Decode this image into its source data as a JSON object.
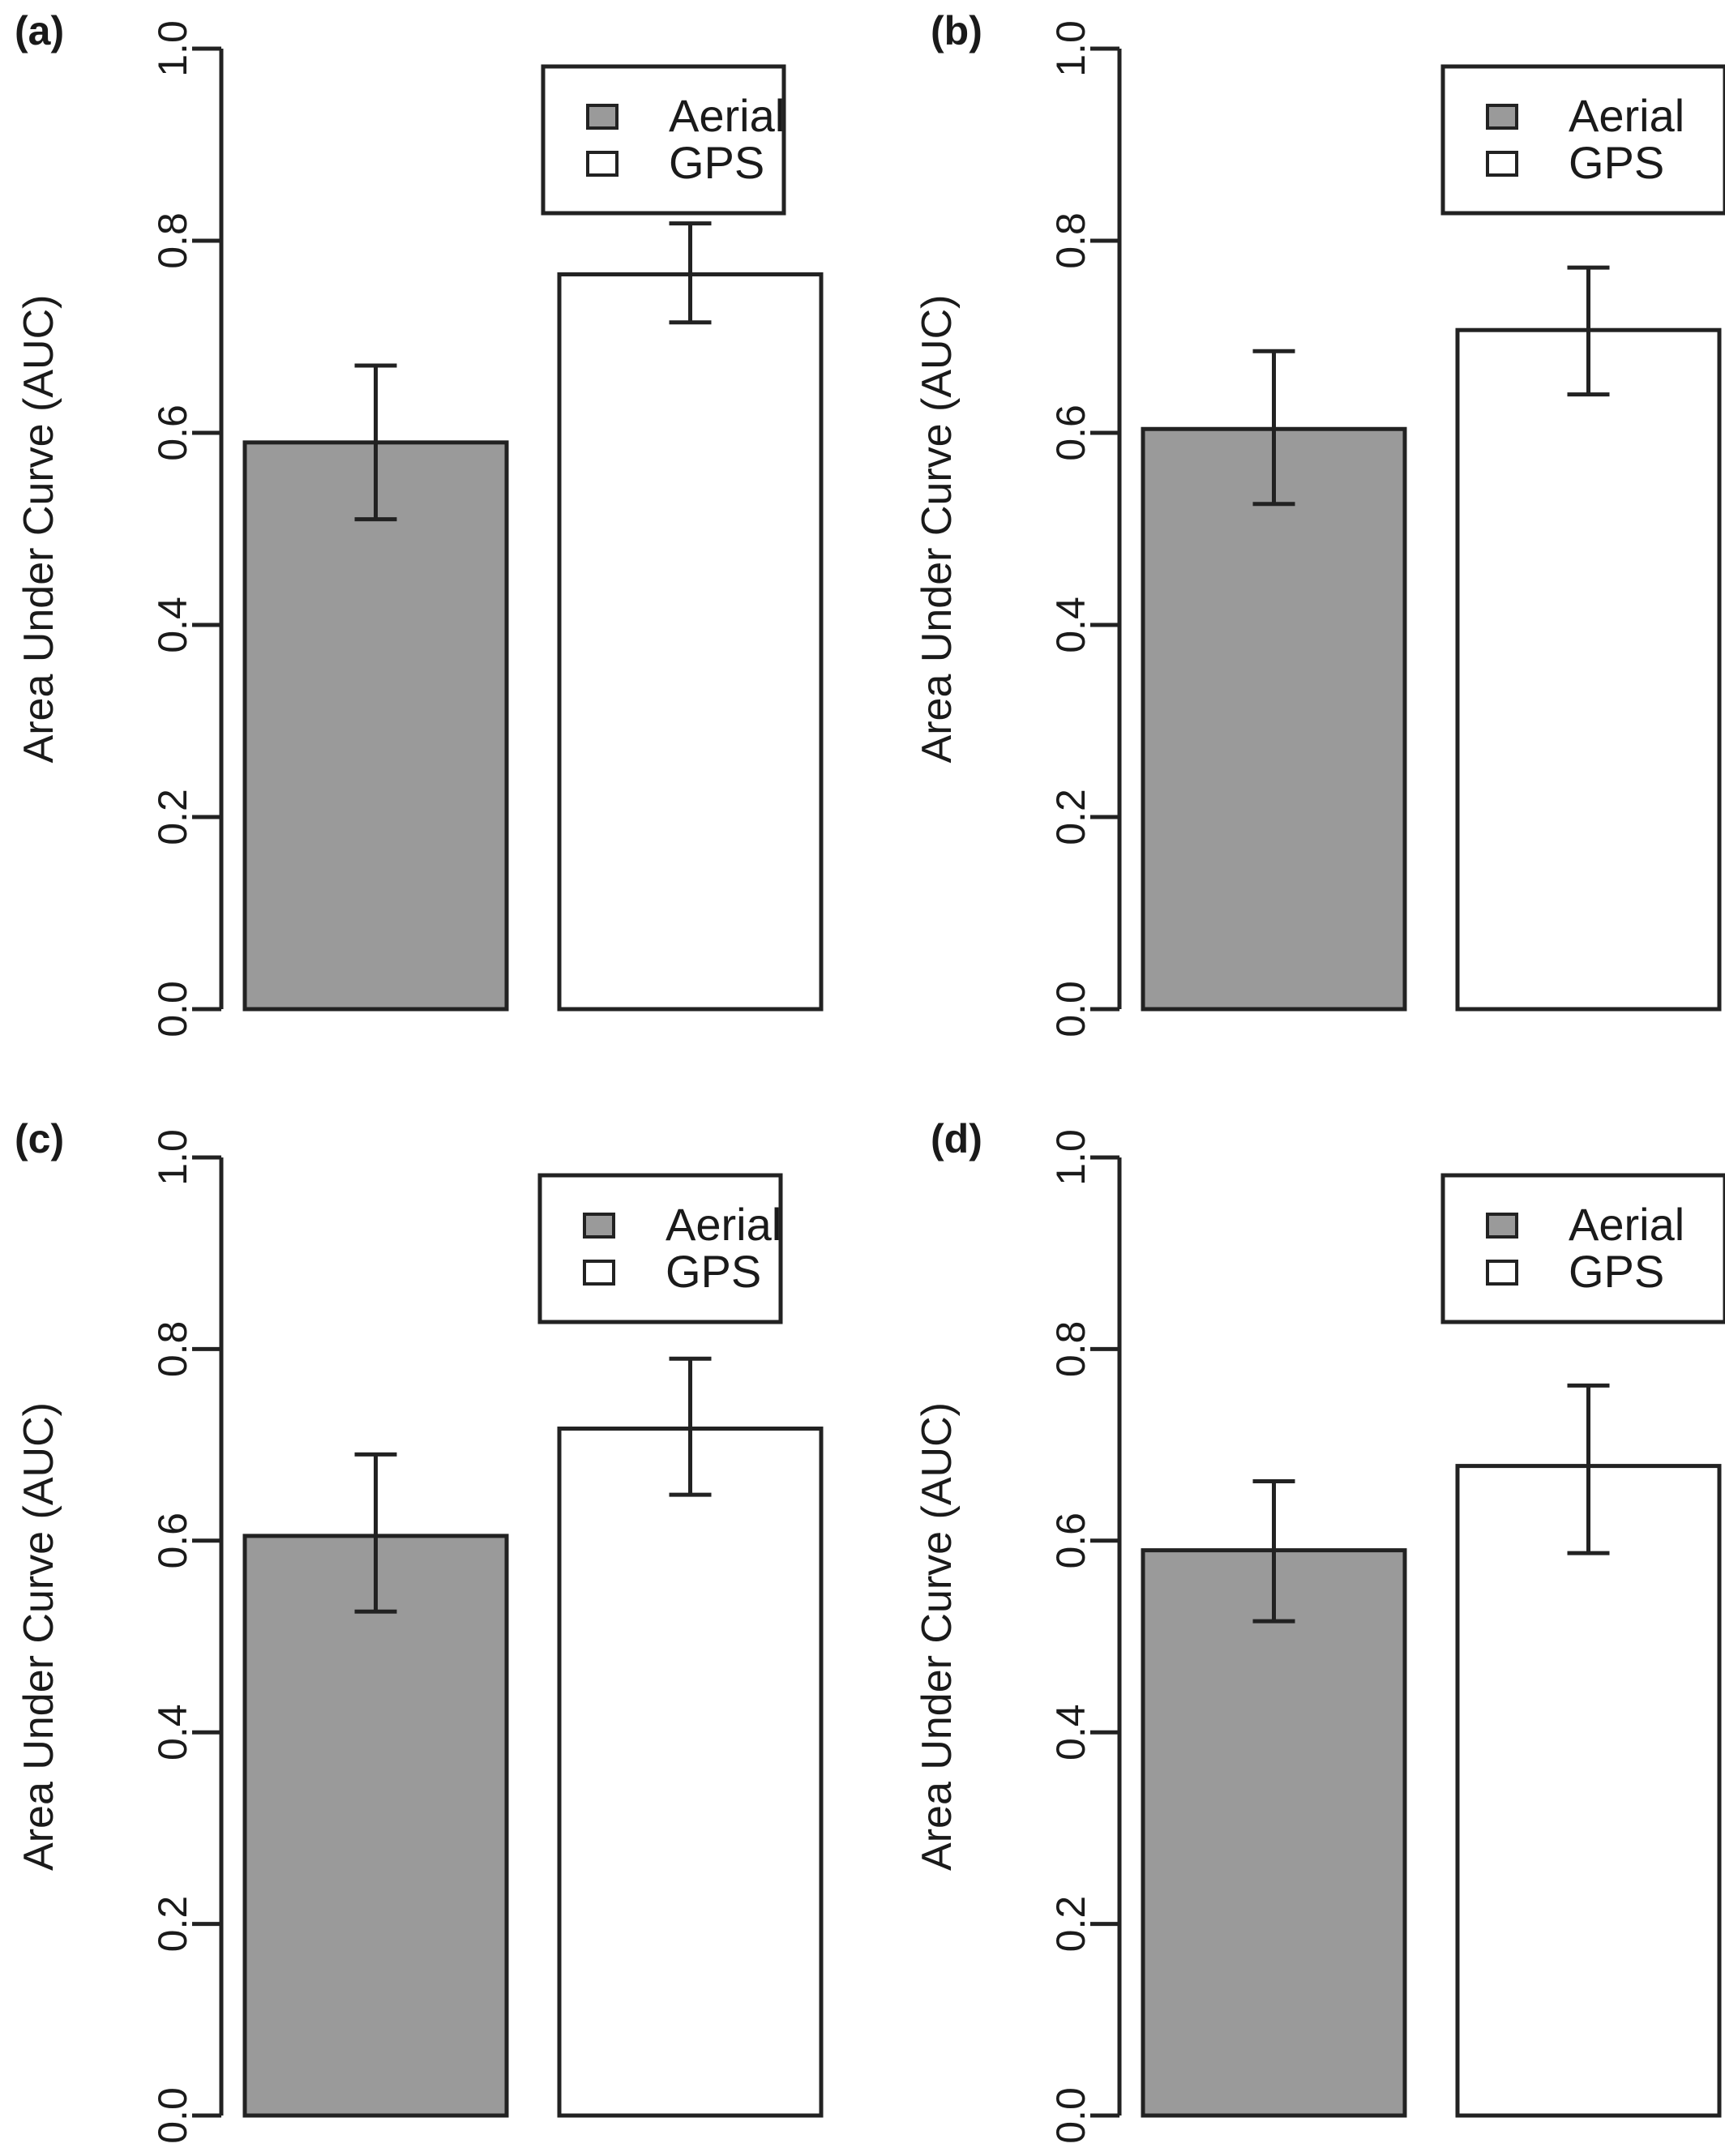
{
  "colors": {
    "axis": "#222222",
    "aerial_fill": "#9a9a9a",
    "gps_fill": "#ffffff",
    "bar_stroke": "#222222"
  },
  "legend": {
    "entries": [
      {
        "label": "Aerial",
        "color": "#9a9a9a"
      },
      {
        "label": "GPS",
        "color": "#ffffff"
      }
    ],
    "placement": "top-right"
  },
  "chart_data": [
    {
      "type": "bar",
      "panel_label": "(a)",
      "ylabel": "Area Under Curve (AUC)",
      "ylim": [
        0,
        1
      ],
      "yticks": [
        "0.0",
        "0.2",
        "0.4",
        "0.6",
        "0.8",
        "1.0"
      ],
      "categories": [
        "Aerial",
        "GPS"
      ],
      "values": [
        0.59,
        0.765
      ],
      "error_low": [
        0.51,
        0.715
      ],
      "error_high": [
        0.67,
        0.818
      ],
      "grid": false
    },
    {
      "type": "bar",
      "panel_label": "(b)",
      "ylabel": "Area Under Curve (AUC)",
      "ylim": [
        0,
        1
      ],
      "yticks": [
        "0.0",
        "0.2",
        "0.4",
        "0.6",
        "0.8",
        "1.0"
      ],
      "categories": [
        "Aerial",
        "GPS"
      ],
      "values": [
        0.604,
        0.707
      ],
      "error_low": [
        0.526,
        0.64
      ],
      "error_high": [
        0.685,
        0.772
      ],
      "grid": false
    },
    {
      "type": "bar",
      "panel_label": "(c)",
      "ylabel": "Area Under Curve (AUC)",
      "ylim": [
        0,
        1
      ],
      "yticks": [
        "0.0",
        "0.2",
        "0.4",
        "0.6",
        "0.8",
        "1.0"
      ],
      "categories": [
        "Aerial",
        "GPS"
      ],
      "values": [
        0.605,
        0.717
      ],
      "error_low": [
        0.526,
        0.648
      ],
      "error_high": [
        0.69,
        0.79
      ],
      "grid": false
    },
    {
      "type": "bar",
      "panel_label": "(d)",
      "ylabel": "Area Under Curve (AUC)",
      "ylim": [
        0,
        1
      ],
      "yticks": [
        "0.0",
        "0.2",
        "0.4",
        "0.6",
        "0.8",
        "1.0"
      ],
      "categories": [
        "Aerial",
        "GPS"
      ],
      "values": [
        0.59,
        0.678
      ],
      "error_low": [
        0.516,
        0.587
      ],
      "error_high": [
        0.662,
        0.762
      ],
      "grid": false
    }
  ]
}
